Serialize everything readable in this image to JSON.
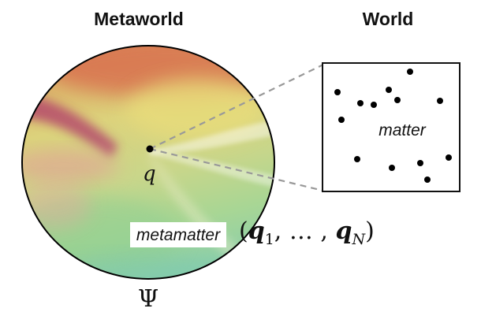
{
  "headings": {
    "metaworld": "Metaworld",
    "world": "World"
  },
  "labels": {
    "point": "q",
    "metamatter": "metamatter",
    "matter": "matter",
    "psi": "Ψ"
  },
  "configuration": {
    "open": "(",
    "q_first": "q",
    "sub_first": "1",
    "separator": ", … , ",
    "q_last": "q",
    "sub_last": "N",
    "close": ")"
  },
  "colors": {
    "connector": "#999999",
    "box_border": "#111111",
    "dots": "#000000"
  }
}
